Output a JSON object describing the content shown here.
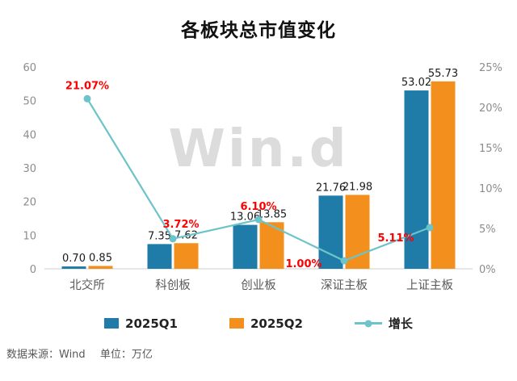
{
  "title": "各板块总市值变化",
  "watermark_text": "Win.d",
  "footer": {
    "source": "数据来源：Wind",
    "unit": "单位：万亿"
  },
  "legend": {
    "items": [
      {
        "label": "2025Q1",
        "color": "#1F7CA8",
        "marker": "square"
      },
      {
        "label": "2025Q2",
        "color": "#F3901D",
        "marker": "square"
      },
      {
        "label": "增长",
        "color": "#6CC3C8",
        "marker": "line-dot"
      }
    ]
  },
  "chart_data": {
    "type": "bar",
    "subtype": "grouped-bars-with-growth-line",
    "title": "各板块总市值变化",
    "categories": [
      "北交所",
      "科创板",
      "创业板",
      "深证主板",
      "上证主板"
    ],
    "series": [
      {
        "name": "2025Q1",
        "type": "bar",
        "axis": "left",
        "color": "#1F7CA8",
        "values": [
          0.7,
          7.35,
          13.06,
          21.76,
          53.02
        ],
        "value_labels": [
          "0.70",
          "7.35",
          "13.06",
          "21.76",
          "53.02"
        ]
      },
      {
        "name": "2025Q2",
        "type": "bar",
        "axis": "left",
        "color": "#F3901D",
        "values": [
          0.85,
          7.62,
          13.85,
          21.98,
          55.73
        ],
        "value_labels": [
          "0.85",
          "7.62",
          "13.85",
          "21.98",
          "55.73"
        ]
      },
      {
        "name": "增长",
        "type": "line",
        "axis": "right",
        "color": "#6CC3C8",
        "values": [
          21.07,
          3.72,
          6.1,
          1.0,
          5.11
        ],
        "value_labels": [
          "21.07%",
          "3.72%",
          "6.10%",
          "1.00%",
          "5.11%"
        ],
        "label_color": "#FF0000"
      }
    ],
    "left_axis": {
      "min": 0,
      "max": 60,
      "ticks": [
        0,
        10,
        20,
        30,
        40,
        50,
        60
      ]
    },
    "right_axis": {
      "min": 0,
      "max": 25,
      "ticks": [
        0,
        5,
        10,
        15,
        20,
        25
      ],
      "tick_labels": [
        "0%",
        "5%",
        "10%",
        "15%",
        "20%",
        "25%"
      ]
    },
    "grid": false,
    "legend_position": "bottom",
    "source_note": "数据来源：Wind",
    "unit_note": "单位：万亿"
  }
}
